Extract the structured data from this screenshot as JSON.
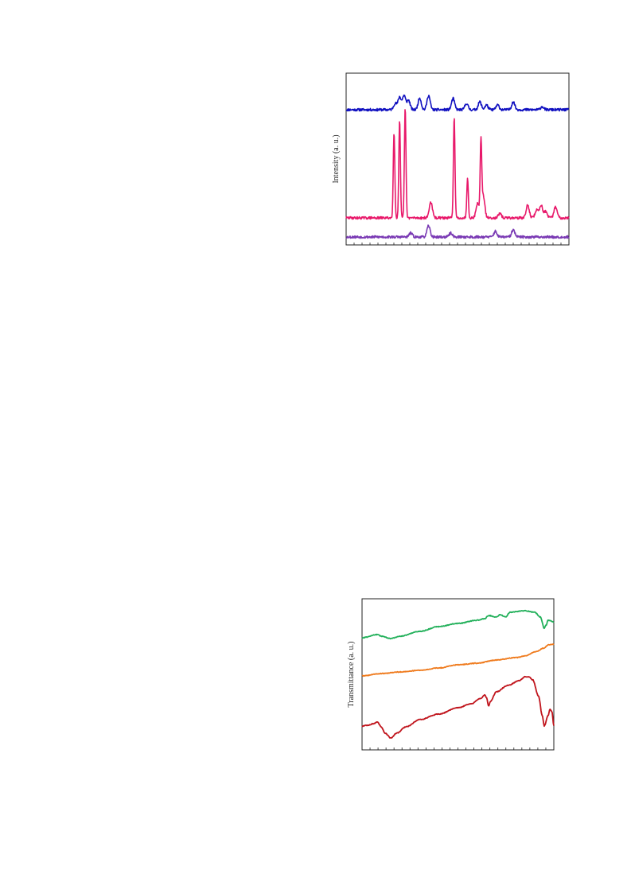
{
  "chart_data": [
    {
      "type": "line",
      "title": "",
      "xlabel": "",
      "ylabel": "Intensity (a. u.)",
      "x_range": [
        0,
        100
      ],
      "grid": false,
      "legend": "none",
      "series": [
        {
          "color": "#1010c0",
          "offset": 138,
          "peaks": [
            [
              22,
              8
            ],
            [
              24,
              16
            ],
            [
              26,
              18
            ],
            [
              28,
              12
            ],
            [
              33,
              15
            ],
            [
              37,
              18
            ],
            [
              48,
              14
            ],
            [
              54,
              8
            ],
            [
              60,
              10
            ],
            [
              63,
              6
            ],
            [
              68,
              6
            ],
            [
              75,
              10
            ],
            [
              88,
              4
            ]
          ]
        },
        {
          "color": "#e8186a",
          "offset": 274,
          "peaks": [
            [
              21.5,
              108
            ],
            [
              24,
              122
            ],
            [
              26.5,
              138
            ],
            [
              38,
              20
            ],
            [
              48.5,
              127
            ],
            [
              54.5,
              50
            ],
            [
              59,
              18
            ],
            [
              60.5,
              90
            ],
            [
              61.5,
              28
            ],
            [
              69,
              5
            ],
            [
              81.5,
              16
            ],
            [
              85.5,
              10
            ],
            [
              87.5,
              16
            ],
            [
              89.5,
              8
            ],
            [
              94,
              14
            ]
          ]
        },
        {
          "color": "#7a3ab4",
          "offset": 298,
          "peaks": [
            [
              29,
              5
            ],
            [
              37,
              14
            ],
            [
              47,
              5
            ],
            [
              67,
              7
            ],
            [
              75,
              9
            ]
          ]
        }
      ]
    },
    {
      "type": "line",
      "title": "",
      "xlabel": "",
      "ylabel": "Transmittance (a. u.)",
      "x_range": [
        0,
        100
      ],
      "grid": false,
      "legend": "none",
      "series": [
        {
          "color": "#22b05a",
          "points": [
            [
              0,
              802
            ],
            [
              8,
              798
            ],
            [
              10,
              800
            ],
            [
              15,
              803
            ],
            [
              20,
              800
            ],
            [
              30,
              794
            ],
            [
              40,
              788
            ],
            [
              50,
              784
            ],
            [
              60,
              780
            ],
            [
              64,
              778
            ],
            [
              66,
              774
            ],
            [
              70,
              776
            ],
            [
              72,
              773
            ],
            [
              75,
              776
            ],
            [
              77,
              770
            ],
            [
              85,
              768
            ],
            [
              90,
              770
            ],
            [
              93,
              776
            ],
            [
              95,
              790
            ],
            [
              96,
              786
            ],
            [
              97,
              780
            ],
            [
              100,
              782
            ]
          ]
        },
        {
          "color": "#ef7b1e",
          "points": [
            [
              0,
              850
            ],
            [
              10,
              847
            ],
            [
              20,
              845
            ],
            [
              30,
              843
            ],
            [
              40,
              840
            ],
            [
              50,
              836
            ],
            [
              60,
              834
            ],
            [
              70,
              830
            ],
            [
              80,
              827
            ],
            [
              85,
              825
            ],
            [
              90,
              820
            ],
            [
              95,
              815
            ],
            [
              97,
              811
            ],
            [
              100,
              810
            ]
          ]
        },
        {
          "color": "#c0141c",
          "points": [
            [
              0,
              913
            ],
            [
              3,
              912
            ],
            [
              6,
              910
            ],
            [
              8,
              908
            ],
            [
              10,
              914
            ],
            [
              12,
              922
            ],
            [
              15,
              928
            ],
            [
              18,
              922
            ],
            [
              23,
              914
            ],
            [
              30,
              905
            ],
            [
              40,
              898
            ],
            [
              50,
              890
            ],
            [
              57,
              885
            ],
            [
              62,
              878
            ],
            [
              64,
              874
            ],
            [
              65,
              878
            ],
            [
              66,
              888
            ],
            [
              67,
              882
            ],
            [
              70,
              870
            ],
            [
              76,
              862
            ],
            [
              82,
              856
            ],
            [
              85,
              851
            ],
            [
              87,
              851
            ],
            [
              89,
              855
            ],
            [
              92,
              875
            ],
            [
              94,
              900
            ],
            [
              95,
              913
            ],
            [
              97,
              900
            ],
            [
              98,
              892
            ],
            [
              99,
              895
            ],
            [
              100,
              913
            ]
          ]
        }
      ]
    }
  ]
}
